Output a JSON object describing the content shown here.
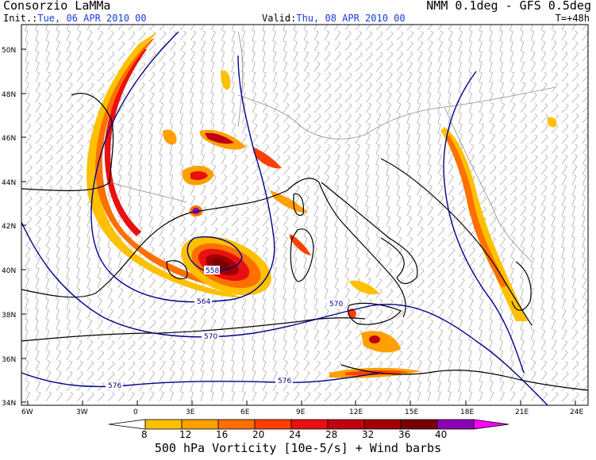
{
  "header": {
    "org": "Consorzio LaMMa",
    "model": "NMM 0.1deg - GFS 0.5deg",
    "init_label": "Init.:",
    "init_value": "Tue, 06 APR 2010  00",
    "valid_label": "Valid:",
    "valid_value": "Thu, 08 APR 2010  00",
    "lead": "T=+48h"
  },
  "map": {
    "lat_labels": [
      "50N",
      "48N",
      "46N",
      "44N",
      "42N",
      "40N",
      "38N",
      "36N",
      "34N"
    ],
    "lon_labels": [
      "6W",
      "3W",
      "0",
      "3E",
      "6E",
      "9E",
      "12E",
      "15E",
      "18E",
      "21E",
      "24E"
    ],
    "contour_labels": [
      "558",
      "564",
      "570",
      "570",
      "576",
      "576"
    ]
  },
  "colorbar": {
    "ticks": [
      "8",
      "12",
      "16",
      "20",
      "24",
      "28",
      "32",
      "36",
      "40"
    ],
    "colors": [
      "#ffc000",
      "#ffa000",
      "#ff7000",
      "#ff4000",
      "#e81010",
      "#c00010",
      "#a00000",
      "#780000",
      "#8c00b4",
      "#ff00ff"
    ],
    "title": "500 hPa Vorticity [10e-5/s] + Wind barbs"
  }
}
